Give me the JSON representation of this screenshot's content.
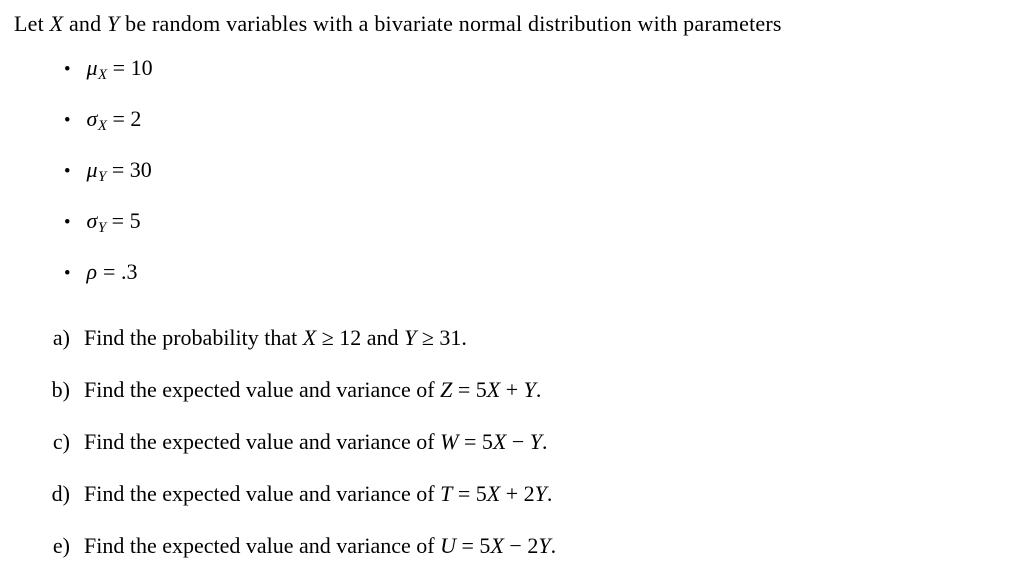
{
  "intro": {
    "t1": "Let ",
    "v1": "X",
    "t2": " and ",
    "v2": "Y",
    "t3": " be random variables with a bivariate normal distribution with parameters"
  },
  "parameters": [
    {
      "bullet": "•",
      "symbol": "μ",
      "subscript": "X",
      "value": " = 10"
    },
    {
      "bullet": "•",
      "symbol": "σ",
      "subscript": "X",
      "value": " = 2"
    },
    {
      "bullet": "•",
      "symbol": "μ",
      "subscript": "Y",
      "value": " = 30"
    },
    {
      "bullet": "•",
      "symbol": "σ",
      "subscript": "Y",
      "value": " = 5"
    },
    {
      "bullet": "•",
      "symbol": "ρ",
      "subscript": "",
      "value": " = .3"
    }
  ],
  "questions": {
    "a": {
      "label": "a)",
      "t1": "Find the probability that ",
      "v1": "X",
      "r1": " ≥ 12",
      "t2": " and ",
      "v2": "Y",
      "r2": " ≥ 31",
      "end": "."
    },
    "b": {
      "label": "b)",
      "t1": "Find the expected value and variance of ",
      "lhs": "Z",
      "eq": " = 5",
      "x": "X",
      "op": " + ",
      "coef": "",
      "y": "Y",
      "end": "."
    },
    "c": {
      "label": "c)",
      "t1": "Find the expected value and variance of ",
      "lhs": "W",
      "eq": " = 5",
      "x": "X",
      "op": " − ",
      "coef": "",
      "y": "Y",
      "end": "."
    },
    "d": {
      "label": "d)",
      "t1": "Find the expected value and variance of ",
      "lhs": "T",
      "eq": " = 5",
      "x": "X",
      "op": " + ",
      "coef": "2",
      "y": "Y",
      "end": "."
    },
    "e": {
      "label": "e)",
      "t1": "Find the expected value and variance of ",
      "lhs": "U",
      "eq": " = 5",
      "x": "X",
      "op": " − ",
      "coef": "2",
      "y": "Y",
      "end": "."
    }
  }
}
